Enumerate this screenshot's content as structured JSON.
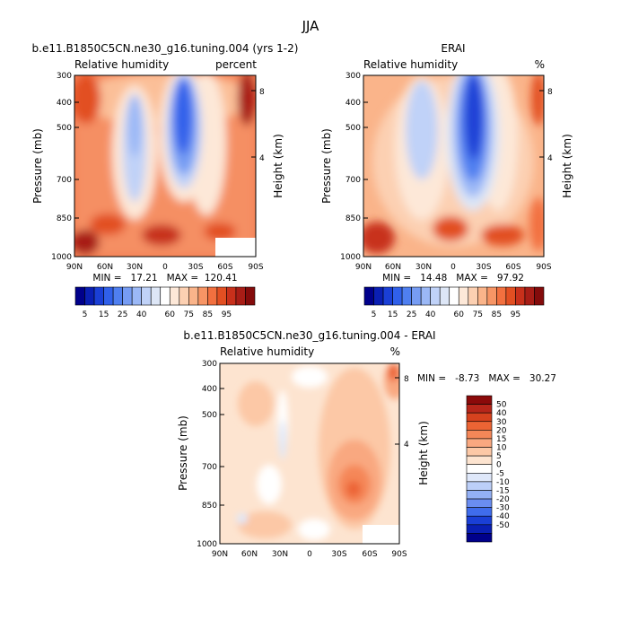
{
  "figure": {
    "season": "JJA",
    "bottom_colorbar_note": ""
  },
  "palette": {
    "abs": [
      "#00008b",
      "#0a1fb4",
      "#1a3fd6",
      "#3060ea",
      "#4f7ff0",
      "#769cf3",
      "#9bb8f6",
      "#c0d2f8",
      "#dde6f6",
      "#ffffff",
      "#fde8d8",
      "#fcd0b2",
      "#fab48a",
      "#f79565",
      "#f2703f",
      "#e24f22",
      "#c8301b",
      "#a81d16",
      "#840b0b"
    ],
    "diff": [
      "#00008b",
      "#0a1fb4",
      "#1a3fd6",
      "#3f6cec",
      "#6a8df1",
      "#93b0f5",
      "#bccff8",
      "#dfe8fa",
      "#ffffff",
      "#fde4d0",
      "#fcc8a6",
      "#f9a880",
      "#f58758",
      "#ec6434",
      "#d6421e",
      "#b7261a",
      "#8b0a0a"
    ]
  },
  "chart_data": [
    {
      "type": "heatmap",
      "title": "b.e11.B1850C5CN.ne30_g16.tuning.004 (yrs 1-2)",
      "left_label": "Relative humidity",
      "right_label": "percent",
      "xlabel": "",
      "ylabel": "Pressure (mb)",
      "ylabel_right": "Height (km)",
      "x_ticks": [
        "90N",
        "60N",
        "30N",
        "0",
        "30S",
        "60S",
        "90S"
      ],
      "y_ticks": [
        300,
        400,
        500,
        700,
        850,
        1000
      ],
      "y_ticks_right": [
        8,
        4
      ],
      "stats_text": "MIN =   17.21   MAX =  120.41",
      "min": 17.21,
      "max": 120.41,
      "colorbar_labels": [
        "5",
        "15",
        "25",
        "40",
        "60",
        "75",
        "85",
        "95"
      ],
      "colorbar_label_positions": [
        1,
        3,
        5,
        7,
        10,
        12,
        14,
        16
      ]
    },
    {
      "type": "heatmap",
      "title": "ERAI",
      "left_label": "Relative humidity",
      "right_label": "%",
      "xlabel": "",
      "ylabel": "Pressure (mb)",
      "ylabel_right": "Height (km)",
      "x_ticks": [
        "90N",
        "60N",
        "30N",
        "0",
        "30S",
        "60S",
        "90S"
      ],
      "y_ticks": [
        300,
        400,
        500,
        700,
        850,
        1000
      ],
      "y_ticks_right": [
        8,
        4
      ],
      "stats_text": "MIN =   14.48   MAX =   97.92",
      "min": 14.48,
      "max": 97.92,
      "colorbar_labels": [
        "5",
        "15",
        "25",
        "40",
        "60",
        "75",
        "85",
        "95"
      ],
      "colorbar_label_positions": [
        1,
        3,
        5,
        7,
        10,
        12,
        14,
        16
      ]
    },
    {
      "type": "heatmap",
      "title": "b.e11.B1850C5CN.ne30_g16.tuning.004 - ERAI",
      "left_label": "Relative humidity",
      "right_label": "%",
      "xlabel": "",
      "ylabel": "Pressure (mb)",
      "ylabel_right": "Height (km)",
      "x_ticks": [
        "90N",
        "60N",
        "30N",
        "0",
        "30S",
        "60S",
        "90S"
      ],
      "y_ticks": [
        300,
        400,
        500,
        700,
        850,
        1000
      ],
      "y_ticks_right": [
        8,
        4
      ],
      "stats_text": "MIN =   -8.73   MAX =   30.27",
      "min": -8.73,
      "max": 30.27,
      "colorbar_labels": [
        "50",
        "40",
        "30",
        "20",
        "15",
        "10",
        "5",
        "0",
        "-5",
        "-10",
        "-15",
        "-20",
        "-30",
        "-40",
        "-50"
      ]
    }
  ]
}
